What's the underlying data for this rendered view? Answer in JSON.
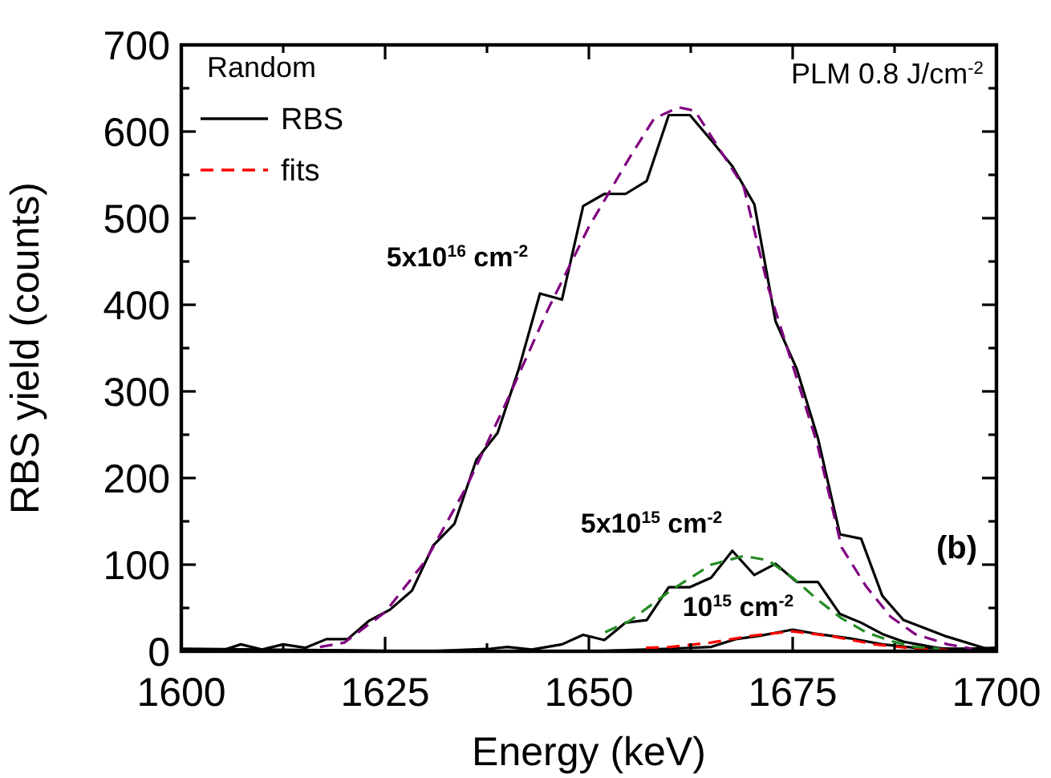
{
  "chart_data": {
    "type": "line",
    "xlabel": "Energy (keV)",
    "ylabel": "RBS yield (counts)",
    "legend_title": "Random",
    "legend": "top left",
    "xlim": [
      1600,
      1700
    ],
    "ylim": [
      0,
      700
    ],
    "xticks": [
      1600,
      {
        "value": 1612.5,
        "label": null
      },
      1625,
      {
        "value": 1637.5,
        "label": null
      },
      1650,
      {
        "value": 1662.5,
        "label": null
      },
      1675,
      {
        "value": 1687.5,
        "label": null
      },
      1700
    ],
    "yticks": [
      0,
      {
        "value": 50,
        "label": null
      },
      100,
      {
        "value": 150,
        "label": null
      },
      200,
      {
        "value": 250,
        "label": null
      },
      300,
      {
        "value": 350,
        "label": null
      },
      400,
      {
        "value": 450,
        "label": null
      },
      500,
      {
        "value": 550,
        "label": null
      },
      600,
      {
        "value": 650,
        "label": null
      },
      700
    ],
    "series": [
      {
        "name": "RBS",
        "color": "#000000",
        "line_style": "solid",
        "x": [
          1600,
          1604.7,
          1607.3,
          1609.9,
          1612.5,
          1615.2,
          1617.8,
          1620.4,
          1623,
          1625.6,
          1628.3,
          1630.9,
          1633.5,
          1636.2,
          1638.8,
          1641.4,
          1644,
          1646.7,
          1649.3,
          1651.9,
          1654.5,
          1657.1,
          1659.8,
          1662.4,
          1665,
          1667.6,
          1670.3,
          1672.9,
          1675.5,
          1678.1,
          1680.8,
          1683.4,
          1686,
          1688.6,
          1693.9,
          1699.1,
          1700
        ],
        "values": [
          0,
          0,
          8,
          2,
          8,
          4,
          14,
          14,
          35,
          48,
          70,
          122,
          147,
          221,
          252,
          326,
          413,
          406,
          514,
          528,
          528,
          543,
          619,
          619,
          590,
          560,
          516,
          381,
          326,
          246,
          135,
          130,
          64,
          36,
          17,
          2,
          2
        ]
      },
      {
        "name": "fits",
        "color": "#ff0000",
        "line_style": "dashed",
        "x": [
          1657,
          1660,
          1665,
          1670,
          1675,
          1680,
          1685,
          1690,
          1695
        ],
        "values": [
          4,
          5,
          10,
          18,
          23,
          17,
          8,
          3,
          1
        ]
      },
      {
        "color": "#800080",
        "line_style": "dashed",
        "x": [
          1617,
          1620,
          1625,
          1630,
          1635,
          1640,
          1645,
          1650,
          1655,
          1658,
          1661,
          1663,
          1666,
          1669,
          1672,
          1675,
          1678,
          1681,
          1684,
          1687,
          1690,
          1694,
          1697
        ],
        "values": [
          5,
          10,
          45,
          105,
          190,
          290,
          395,
          490,
          570,
          615,
          628,
          624,
          580,
          536,
          420,
          330,
          240,
          120,
          75,
          40,
          20,
          8,
          3
        ]
      },
      {
        "color": "#000000",
        "line_style": "solid",
        "x": [
          1600,
          1610,
          1620,
          1630,
          1638,
          1640,
          1643,
          1646.7,
          1649.3,
          1651.9,
          1654.5,
          1657.1,
          1659.8,
          1662.4,
          1665,
          1667.6,
          1670.3,
          1672.9,
          1675.5,
          1678.1,
          1680.8,
          1683.4,
          1686,
          1688.6,
          1693.9,
          1700
        ],
        "values": [
          3,
          2,
          1,
          0,
          3,
          5,
          2,
          8,
          19,
          13,
          33,
          36,
          74,
          74,
          85,
          116,
          88,
          101,
          80,
          80,
          43,
          33,
          20,
          11,
          2,
          4
        ]
      },
      {
        "color": "#228b22",
        "line_style": "dashed",
        "x": [
          1652,
          1655,
          1660,
          1665,
          1669,
          1672,
          1675,
          1678,
          1681,
          1684,
          1687,
          1690,
          1693
        ],
        "values": [
          22,
          35,
          70,
          100,
          110,
          105,
          85,
          60,
          38,
          22,
          12,
          5,
          3
        ]
      },
      {
        "color": "#000000",
        "line_style": "solid",
        "x": [
          1600,
          1630,
          1650,
          1660,
          1665,
          1668,
          1671,
          1675,
          1678,
          1682,
          1686,
          1690,
          1695,
          1700
        ],
        "values": [
          2,
          0,
          0,
          3,
          5,
          14,
          18,
          25,
          20,
          15,
          8,
          4,
          3,
          3
        ]
      }
    ],
    "annotations": [
      "PLM 0.8 J/cm$^{-2}$",
      "(b)",
      "5x10$^{16}$ cm$^{-2}$",
      "5x10$^{15}$ cm$^{-2}$",
      "10$^{15}$ cm$^{-2}$"
    ]
  }
}
